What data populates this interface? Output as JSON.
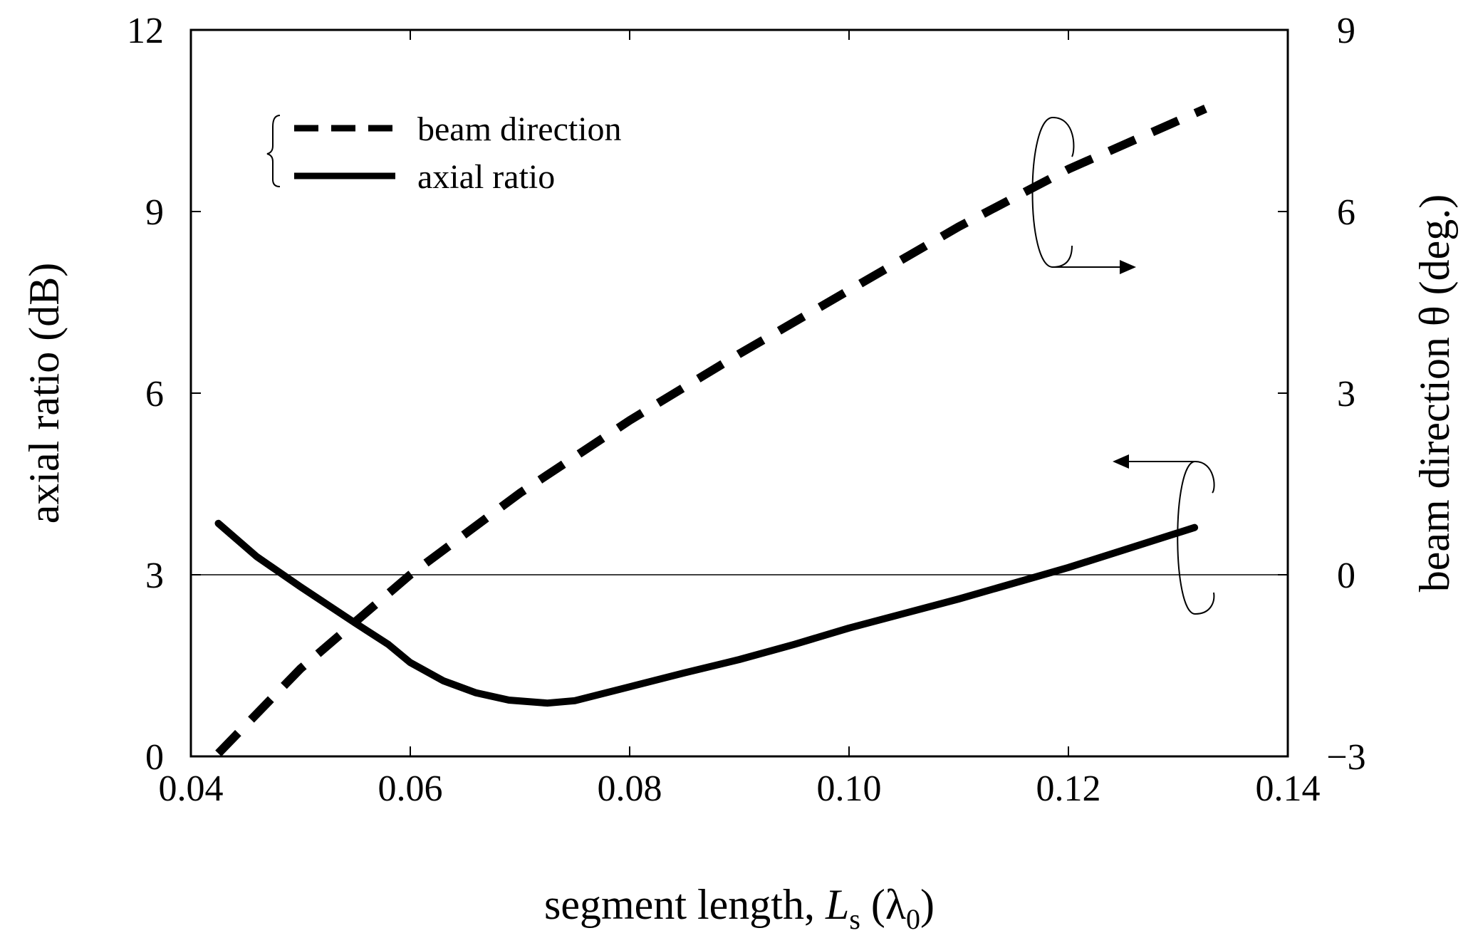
{
  "chart_data": {
    "type": "line",
    "xlabel_main": "segment length, ",
    "xlabel_var": "L",
    "xlabel_var_sub": "s",
    "xlabel_unit_open": " (λ",
    "xlabel_unit_sub": "0",
    "xlabel_unit_close": ")",
    "ylabel_left": "axial ratio (dB)",
    "ylabel_right": "beam direction θ (deg.)",
    "xlim": [
      0.04,
      0.14
    ],
    "ylim_left": [
      0,
      12
    ],
    "ylim_right": [
      -3,
      9
    ],
    "x_ticks": [
      "0.04",
      "0.06",
      "0.08",
      "0.10",
      "0.12",
      "0.14"
    ],
    "y_left_ticks": [
      "0",
      "3",
      "6",
      "9",
      "12"
    ],
    "y_right_ticks": [
      "−3",
      "0",
      "3",
      "6",
      "9"
    ],
    "reference_line_left": 3,
    "legend_position": "top-left",
    "series": [
      {
        "name": "beam direction",
        "axis": "right",
        "style": "dashed",
        "color": "#000000",
        "x": [
          0.0425,
          0.05,
          0.06,
          0.07,
          0.08,
          0.09,
          0.1,
          0.11,
          0.12,
          0.1325
        ],
        "y": [
          -2.95,
          -1.55,
          0.0,
          1.35,
          2.55,
          3.65,
          4.7,
          5.75,
          6.7,
          7.7
        ]
      },
      {
        "name": "axial ratio",
        "axis": "left",
        "style": "solid",
        "color": "#000000",
        "x": [
          0.0425,
          0.046,
          0.05,
          0.055,
          0.058,
          0.06,
          0.063,
          0.066,
          0.069,
          0.0725,
          0.075,
          0.08,
          0.085,
          0.09,
          0.095,
          0.1,
          0.11,
          0.12,
          0.1315
        ],
        "y": [
          3.85,
          3.3,
          2.8,
          2.2,
          1.85,
          1.55,
          1.25,
          1.05,
          0.93,
          0.88,
          0.92,
          1.15,
          1.38,
          1.6,
          1.85,
          2.12,
          2.6,
          3.12,
          3.78
        ]
      }
    ]
  }
}
